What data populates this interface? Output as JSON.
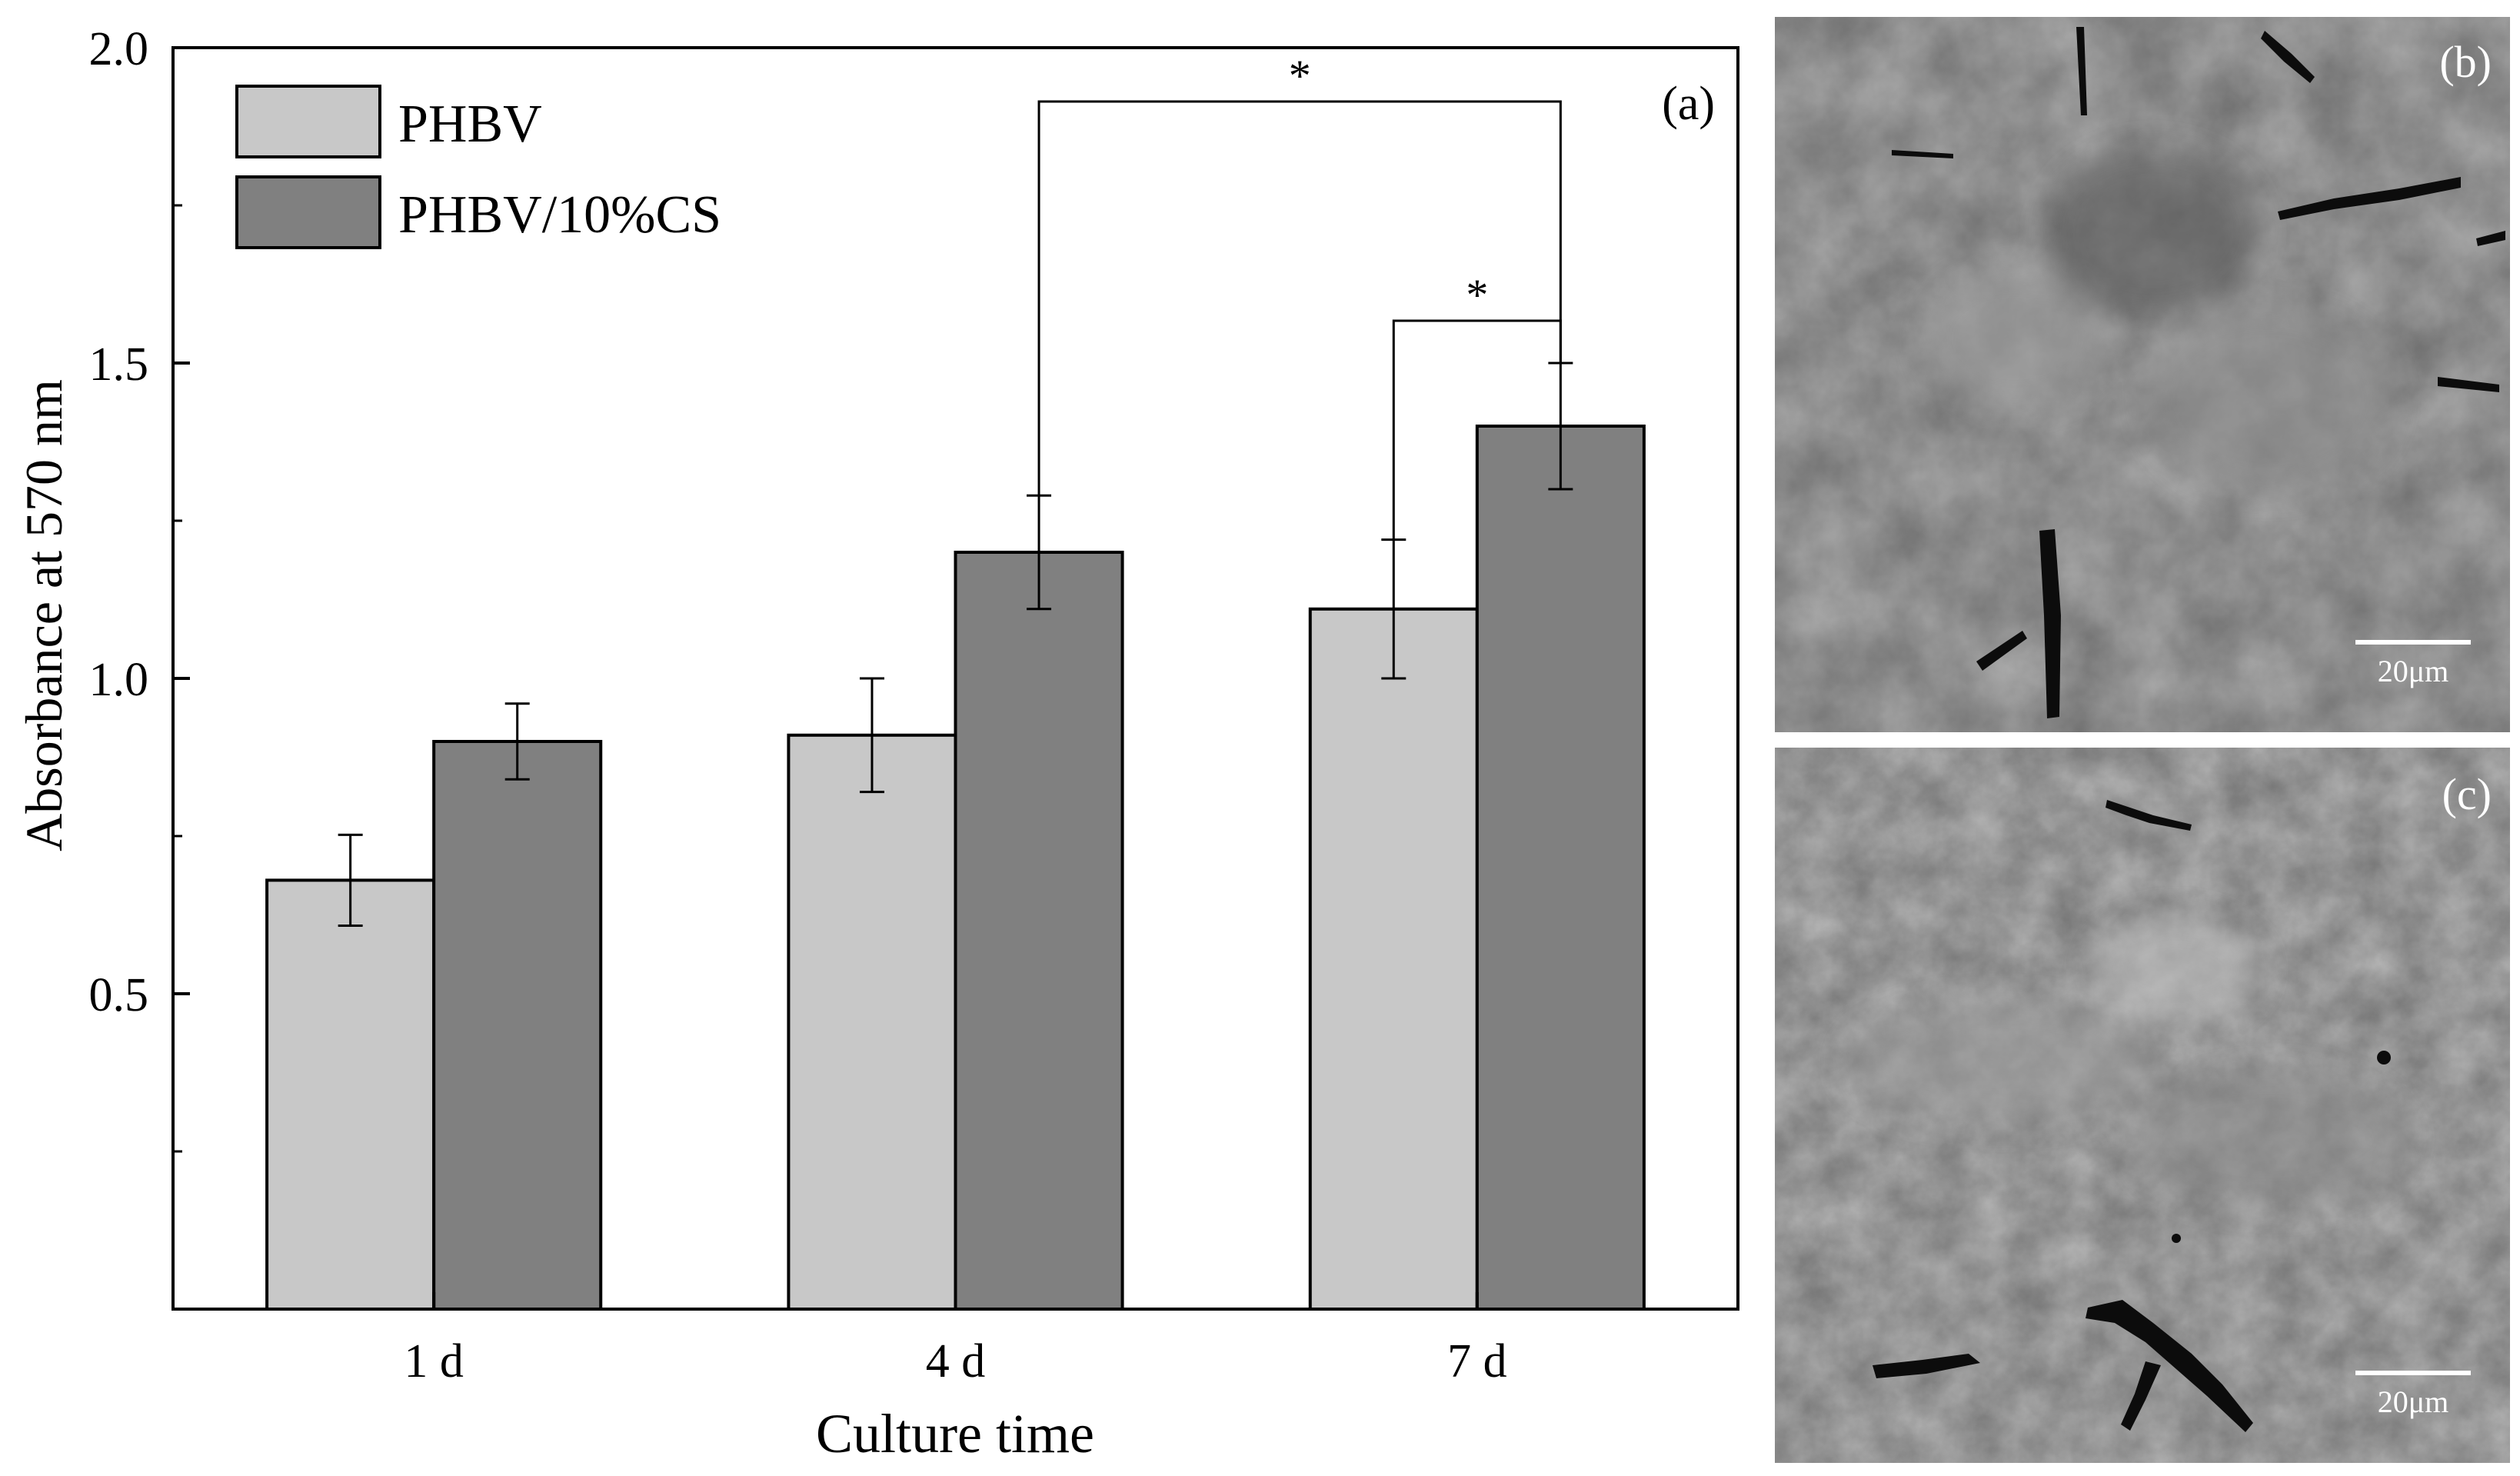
{
  "chart_data": {
    "type": "bar",
    "panel_label": "(a)",
    "xlabel": "Culture time",
    "ylabel": "Absorbance at 570 nm",
    "categories": [
      "1 d",
      "4 d",
      "7 d"
    ],
    "ylim": [
      0,
      2.0
    ],
    "yticks": [
      0.5,
      1.0,
      1.5,
      2.0
    ],
    "ytick_labels": [
      "0.5",
      "1.0",
      "1.5",
      "2.0"
    ],
    "minor_yticks": [
      0.25,
      0.75,
      1.25,
      1.75
    ],
    "grid": false,
    "legend_position": "top-left",
    "series": [
      {
        "name": "PHBV",
        "color": "#c8c8c8",
        "values": [
          0.68,
          0.91,
          1.11
        ],
        "errors": [
          0.072,
          0.09,
          0.11
        ]
      },
      {
        "name": "PHBV/10%CS",
        "color": "#808080",
        "values": [
          0.9,
          1.2,
          1.4
        ],
        "errors": [
          0.06,
          0.09,
          0.1
        ]
      }
    ],
    "significance": [
      {
        "label": "*",
        "from": {
          "series": 1,
          "category": 1
        },
        "to": {
          "series": 1,
          "category": 2
        }
      },
      {
        "label": "*",
        "from": {
          "series": 0,
          "category": 2
        },
        "to": {
          "series": 1,
          "category": 2
        }
      }
    ]
  },
  "micrographs": [
    {
      "label": "(b)",
      "scale_bar": "20μm"
    },
    {
      "label": "(c)",
      "scale_bar": "20μm"
    }
  ]
}
